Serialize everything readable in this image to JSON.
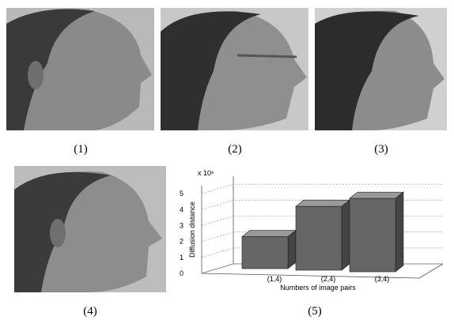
{
  "captions": [
    "(1)",
    "(2)",
    "(3)",
    "(4)",
    "(5)"
  ],
  "chart_data": {
    "type": "bar3d",
    "ylabel": "Diffusion distance",
    "xlabel": "Numbers of image pairs",
    "y_multiplier": "x 10⁶",
    "categories": [
      "(1,4)",
      "(2,4)",
      "(3,4)"
    ],
    "values": [
      2.3,
      4.2,
      4.7
    ],
    "color": "#666666",
    "ylim": [
      0,
      5.5
    ],
    "yticks": [
      0,
      1,
      2,
      3,
      4,
      5
    ],
    "grid": true
  }
}
